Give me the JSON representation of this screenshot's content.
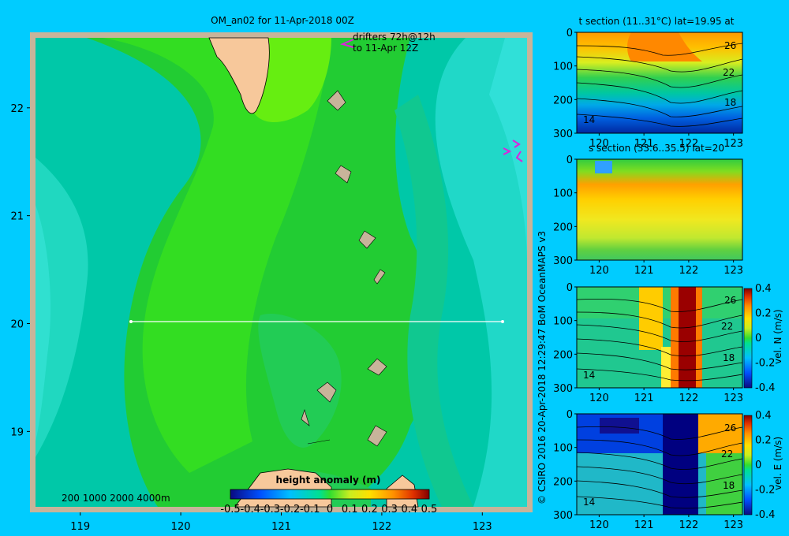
{
  "title": "OM_an02 for 11-Apr-2018 00Z",
  "drifters": {
    "line1": "drifters 72h@12h",
    "line2": "to 11-Apr 12Z"
  },
  "credit": "© CSIRO 2016   20-Apr-2018 12:29:47 BoM OceanMAPS v3",
  "depth_legend": "200  1000  2000  4000m",
  "colors": {
    "background": "#00ccff",
    "land": "#f7c89b",
    "shelf": "#c8b49a",
    "section_line": "#ffffff",
    "drifter": "#dd22dd"
  },
  "chart_data": [
    {
      "type": "heatmap",
      "name": "map",
      "title": "OM_an02 for 11-Apr-2018 00Z",
      "xlim": [
        118.5,
        123.5
      ],
      "ylim": [
        18.25,
        22.7
      ],
      "xticks": [
        "119",
        "120",
        "121",
        "122",
        "123"
      ],
      "yticks": [
        "19",
        "20",
        "21",
        "22"
      ],
      "section_line": {
        "lat": 20,
        "lon_start": 119.5,
        "lon_end": 123.2
      },
      "colorbar": {
        "label": "height anomaly (m)",
        "range": [
          -0.5,
          0.5
        ],
        "ticks": [
          "-0.5",
          "-0.4",
          "-0.3",
          "-0.2",
          "-0.1",
          "0",
          "0.1",
          "0.2",
          "0.3",
          "0.4",
          "0.5"
        ]
      }
    },
    {
      "type": "heatmap",
      "name": "t-section",
      "title": "t section (11..31°C) lat=19.95 at",
      "xlim": [
        119.5,
        123.2
      ],
      "ylim": [
        0,
        300
      ],
      "xticks": [
        "120",
        "121",
        "122",
        "123"
      ],
      "yticks": [
        "0",
        "100",
        "200",
        "300"
      ],
      "contour_labels": [
        "26",
        "22",
        "18",
        "14"
      ]
    },
    {
      "type": "heatmap",
      "name": "s-section",
      "title": "s section (33.6..35.5) lat=20",
      "xlim": [
        119.5,
        123.2
      ],
      "ylim": [
        0,
        300
      ],
      "xticks": [
        "120",
        "121",
        "122",
        "123"
      ],
      "yticks": [
        "0",
        "100",
        "200",
        "300"
      ]
    },
    {
      "type": "heatmap",
      "name": "vel-n-section",
      "xlim": [
        119.5,
        123.2
      ],
      "ylim": [
        0,
        300
      ],
      "xticks": [
        "120",
        "121",
        "122",
        "123"
      ],
      "yticks": [
        "0",
        "100",
        "200",
        "300"
      ],
      "contour_labels": [
        "26",
        "22",
        "18",
        "14"
      ],
      "colorbar": {
        "label": "vel. N (m/s)",
        "range": [
          -0.4,
          0.4
        ],
        "ticks": [
          "0.4",
          "0.2",
          "0",
          "-0.2",
          "-0.4"
        ]
      }
    },
    {
      "type": "heatmap",
      "name": "vel-e-section",
      "xlim": [
        119.5,
        123.2
      ],
      "ylim": [
        0,
        300
      ],
      "xticks": [
        "120",
        "121",
        "122",
        "123"
      ],
      "yticks": [
        "0",
        "100",
        "200",
        "300"
      ],
      "contour_labels": [
        "26",
        "22",
        "18",
        "14"
      ],
      "colorbar": {
        "label": "vel. E (m/s)",
        "range": [
          -0.4,
          0.4
        ],
        "ticks": [
          "0.4",
          "0.2",
          "0",
          "-0.2",
          "-0.4"
        ]
      }
    }
  ]
}
